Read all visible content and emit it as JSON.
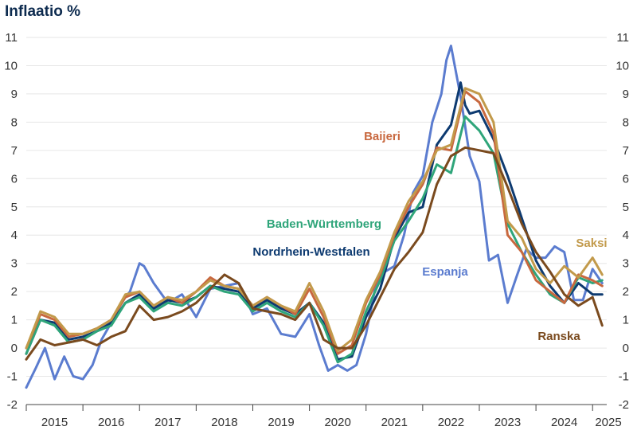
{
  "chart_data": {
    "type": "line",
    "title": "Inflaatio %",
    "xlabel": "",
    "ylabel": "",
    "ylim": [
      -2,
      11
    ],
    "yticks": [
      -2,
      -1,
      0,
      1,
      2,
      3,
      4,
      5,
      6,
      7,
      8,
      9,
      10,
      11
    ],
    "xlim": [
      2015.0,
      2025.25
    ],
    "year_labels": [
      "2015",
      "2016",
      "2017",
      "2018",
      "2019",
      "2020",
      "2021",
      "2022",
      "2023",
      "2024",
      "2025"
    ],
    "grid": true,
    "legend": "inline labels",
    "series": [
      {
        "name": "Espanja",
        "color": "#5b7ccf",
        "x": [
          2015.0,
          2015.17,
          2015.33,
          2015.5,
          2015.67,
          2015.83,
          2016.0,
          2016.17,
          2016.33,
          2016.5,
          2016.67,
          2016.83,
          2017.0,
          2017.08,
          2017.25,
          2017.5,
          2017.75,
          2018.0,
          2018.25,
          2018.5,
          2018.75,
          2019.0,
          2019.25,
          2019.5,
          2019.75,
          2020.0,
          2020.17,
          2020.33,
          2020.5,
          2020.67,
          2020.83,
          2021.0,
          2021.17,
          2021.33,
          2021.5,
          2021.67,
          2021.83,
          2022.0,
          2022.17,
          2022.33,
          2022.42,
          2022.5,
          2022.67,
          2022.83,
          2023.0,
          2023.17,
          2023.33,
          2023.5,
          2023.67,
          2023.83,
          2024.0,
          2024.17,
          2024.33,
          2024.5,
          2024.67,
          2024.83,
          2025.0,
          2025.17
        ],
        "values": [
          -1.4,
          -0.7,
          0.0,
          -1.1,
          -0.3,
          -1.0,
          -1.1,
          -0.6,
          0.3,
          0.9,
          1.6,
          2.0,
          3.0,
          2.9,
          2.3,
          1.6,
          1.9,
          1.1,
          2.1,
          2.2,
          2.3,
          1.2,
          1.4,
          0.5,
          0.4,
          1.2,
          0.1,
          -0.8,
          -0.6,
          -0.8,
          -0.6,
          0.5,
          2.2,
          2.7,
          2.9,
          4.0,
          5.5,
          6.1,
          8.0,
          9.0,
          10.2,
          10.7,
          8.9,
          6.8,
          5.9,
          3.1,
          3.3,
          1.6,
          2.6,
          3.5,
          3.2,
          3.2,
          3.6,
          3.4,
          1.7,
          1.7,
          2.8,
          2.3
        ]
      },
      {
        "name": "Nordrhein-Westfalen",
        "color": "#0d3a70",
        "x": [
          2015.0,
          2015.25,
          2015.5,
          2015.75,
          2016.0,
          2016.25,
          2016.5,
          2016.75,
          2017.0,
          2017.25,
          2017.5,
          2017.75,
          2018.0,
          2018.25,
          2018.5,
          2018.75,
          2019.0,
          2019.25,
          2019.5,
          2019.75,
          2020.0,
          2020.25,
          2020.5,
          2020.75,
          2021.0,
          2021.25,
          2021.5,
          2021.75,
          2022.0,
          2022.25,
          2022.5,
          2022.67,
          2022.75,
          2022.83,
          2023.0,
          2023.25,
          2023.5,
          2023.75,
          2024.0,
          2024.25,
          2024.5,
          2024.75,
          2025.0,
          2025.17
        ],
        "values": [
          -0.2,
          1.0,
          0.9,
          0.3,
          0.4,
          0.6,
          0.9,
          1.6,
          1.9,
          1.4,
          1.7,
          1.6,
          1.8,
          2.2,
          2.1,
          2.0,
          1.4,
          1.7,
          1.4,
          1.2,
          1.6,
          0.9,
          -0.4,
          -0.3,
          1.1,
          2.1,
          3.9,
          4.8,
          5.0,
          7.2,
          7.9,
          9.4,
          8.6,
          8.3,
          8.4,
          7.4,
          6.1,
          4.6,
          3.1,
          2.2,
          1.6,
          2.3,
          1.9,
          1.9
        ]
      },
      {
        "name": "Baden-Württemberg",
        "color": "#2fa57a",
        "x": [
          2015.0,
          2015.25,
          2015.5,
          2015.75,
          2016.0,
          2016.25,
          2016.5,
          2016.75,
          2017.0,
          2017.25,
          2017.5,
          2017.75,
          2018.0,
          2018.25,
          2018.5,
          2018.75,
          2019.0,
          2019.25,
          2019.5,
          2019.75,
          2020.0,
          2020.25,
          2020.5,
          2020.75,
          2021.0,
          2021.25,
          2021.5,
          2021.75,
          2022.0,
          2022.25,
          2022.5,
          2022.75,
          2023.0,
          2023.25,
          2023.5,
          2023.75,
          2024.0,
          2024.25,
          2024.5,
          2024.75,
          2025.0,
          2025.17
        ],
        "values": [
          -0.2,
          1.0,
          0.8,
          0.2,
          0.3,
          0.6,
          0.8,
          1.6,
          1.8,
          1.3,
          1.6,
          1.5,
          1.8,
          2.2,
          2.0,
          1.9,
          1.3,
          1.6,
          1.3,
          1.1,
          1.6,
          0.8,
          -0.5,
          -0.2,
          1.3,
          2.4,
          3.8,
          4.5,
          5.3,
          6.5,
          6.2,
          8.2,
          7.7,
          6.9,
          4.4,
          3.4,
          2.6,
          1.9,
          1.6,
          2.5,
          2.3,
          2.4
        ]
      },
      {
        "name": "Baijeri",
        "color": "#c8683f",
        "x": [
          2015.0,
          2015.25,
          2015.5,
          2015.75,
          2016.0,
          2016.25,
          2016.5,
          2016.75,
          2017.0,
          2017.25,
          2017.5,
          2017.75,
          2018.0,
          2018.25,
          2018.5,
          2018.75,
          2019.0,
          2019.25,
          2019.5,
          2019.75,
          2020.0,
          2020.25,
          2020.5,
          2020.75,
          2021.0,
          2021.25,
          2021.5,
          2021.75,
          2022.0,
          2022.25,
          2022.5,
          2022.75,
          2023.0,
          2023.25,
          2023.5,
          2023.75,
          2024.0,
          2024.25,
          2024.5,
          2024.75,
          2025.0,
          2025.17
        ],
        "values": [
          0.0,
          1.2,
          1.0,
          0.4,
          0.5,
          0.7,
          1.0,
          1.8,
          2.0,
          1.5,
          1.8,
          1.6,
          2.0,
          2.5,
          2.2,
          2.1,
          1.5,
          1.8,
          1.5,
          1.2,
          2.1,
          1.1,
          -0.2,
          0.1,
          1.6,
          2.6,
          4.0,
          5.0,
          5.8,
          7.1,
          7.0,
          9.1,
          8.7,
          7.6,
          4.0,
          3.4,
          2.4,
          2.0,
          1.6,
          2.6,
          2.4,
          2.2
        ]
      },
      {
        "name": "Saksi",
        "color": "#c29a4b",
        "x": [
          2015.0,
          2015.25,
          2015.5,
          2015.75,
          2016.0,
          2016.25,
          2016.5,
          2016.75,
          2017.0,
          2017.25,
          2017.5,
          2017.75,
          2018.0,
          2018.25,
          2018.5,
          2018.75,
          2019.0,
          2019.25,
          2019.5,
          2019.75,
          2020.0,
          2020.25,
          2020.5,
          2020.75,
          2021.0,
          2021.25,
          2021.5,
          2021.75,
          2022.0,
          2022.25,
          2022.5,
          2022.75,
          2023.0,
          2023.25,
          2023.5,
          2023.75,
          2024.0,
          2024.25,
          2024.5,
          2024.75,
          2025.0,
          2025.17
        ],
        "values": [
          0.0,
          1.3,
          1.1,
          0.5,
          0.5,
          0.7,
          1.0,
          1.9,
          2.0,
          1.5,
          1.8,
          1.7,
          2.0,
          2.4,
          2.2,
          2.1,
          1.5,
          1.8,
          1.5,
          1.3,
          2.3,
          1.3,
          -0.1,
          0.3,
          1.7,
          2.7,
          4.1,
          5.2,
          5.9,
          7.0,
          7.2,
          9.2,
          9.0,
          8.0,
          4.5,
          3.9,
          2.8,
          2.3,
          2.9,
          2.5,
          3.2,
          2.6
        ]
      },
      {
        "name": "Ranska",
        "color": "#7a4a1e",
        "x": [
          2015.0,
          2015.25,
          2015.5,
          2015.75,
          2016.0,
          2016.25,
          2016.5,
          2016.75,
          2017.0,
          2017.25,
          2017.5,
          2017.75,
          2018.0,
          2018.25,
          2018.5,
          2018.75,
          2019.0,
          2019.25,
          2019.5,
          2019.75,
          2020.0,
          2020.25,
          2020.5,
          2020.75,
          2021.0,
          2021.25,
          2021.5,
          2021.75,
          2022.0,
          2022.25,
          2022.5,
          2022.75,
          2023.0,
          2023.25,
          2023.5,
          2023.75,
          2024.0,
          2024.25,
          2024.5,
          2024.75,
          2025.0,
          2025.17
        ],
        "values": [
          -0.4,
          0.3,
          0.1,
          0.2,
          0.3,
          0.1,
          0.4,
          0.6,
          1.5,
          1.0,
          1.1,
          1.3,
          1.6,
          2.1,
          2.6,
          2.3,
          1.4,
          1.3,
          1.2,
          1.0,
          1.6,
          0.3,
          0.0,
          0.0,
          0.8,
          1.8,
          2.8,
          3.4,
          4.1,
          5.8,
          6.8,
          7.1,
          7.0,
          6.9,
          5.7,
          4.4,
          3.4,
          2.7,
          1.9,
          1.5,
          1.8,
          0.8
        ]
      }
    ]
  }
}
